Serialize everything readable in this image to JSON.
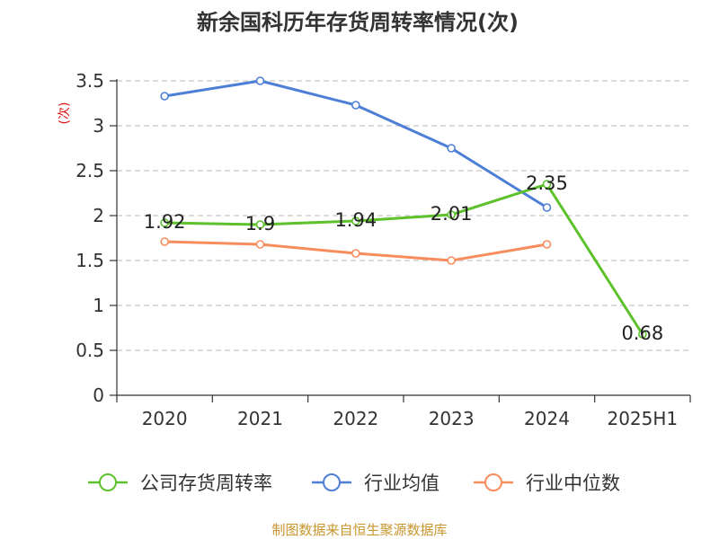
{
  "chart_data": {
    "type": "line",
    "title": "新余国科历年存货周转率情况(次)",
    "ylabel": "(次)",
    "xlabel": "",
    "categories": [
      "2020",
      "2021",
      "2022",
      "2023",
      "2024",
      "2025H1"
    ],
    "ylim": [
      0,
      3.5
    ],
    "yticks": [
      0,
      0.5,
      1,
      1.5,
      2,
      2.5,
      3,
      3.5
    ],
    "ytick_labels": [
      "0",
      "0.5",
      "1",
      "1.5",
      "2",
      "2.5",
      "3",
      "3.5"
    ],
    "grid": true,
    "legend_position": "bottom",
    "series": [
      {
        "name": "公司存货周转率",
        "color": "#5cc12a",
        "values": [
          1.92,
          1.9,
          1.94,
          2.01,
          2.35,
          0.68
        ],
        "labels": [
          "1.92",
          "1.9",
          "1.94",
          "2.01",
          "2.35",
          "0.68"
        ]
      },
      {
        "name": "行业均值",
        "color": "#4e7fd6",
        "values": [
          3.33,
          3.5,
          3.23,
          2.75,
          2.09,
          null
        ]
      },
      {
        "name": "行业中位数",
        "color": "#f78c5c",
        "values": [
          1.71,
          1.68,
          1.58,
          1.5,
          1.68,
          null
        ]
      }
    ]
  },
  "source": "制图数据来自恒生聚源数据库"
}
